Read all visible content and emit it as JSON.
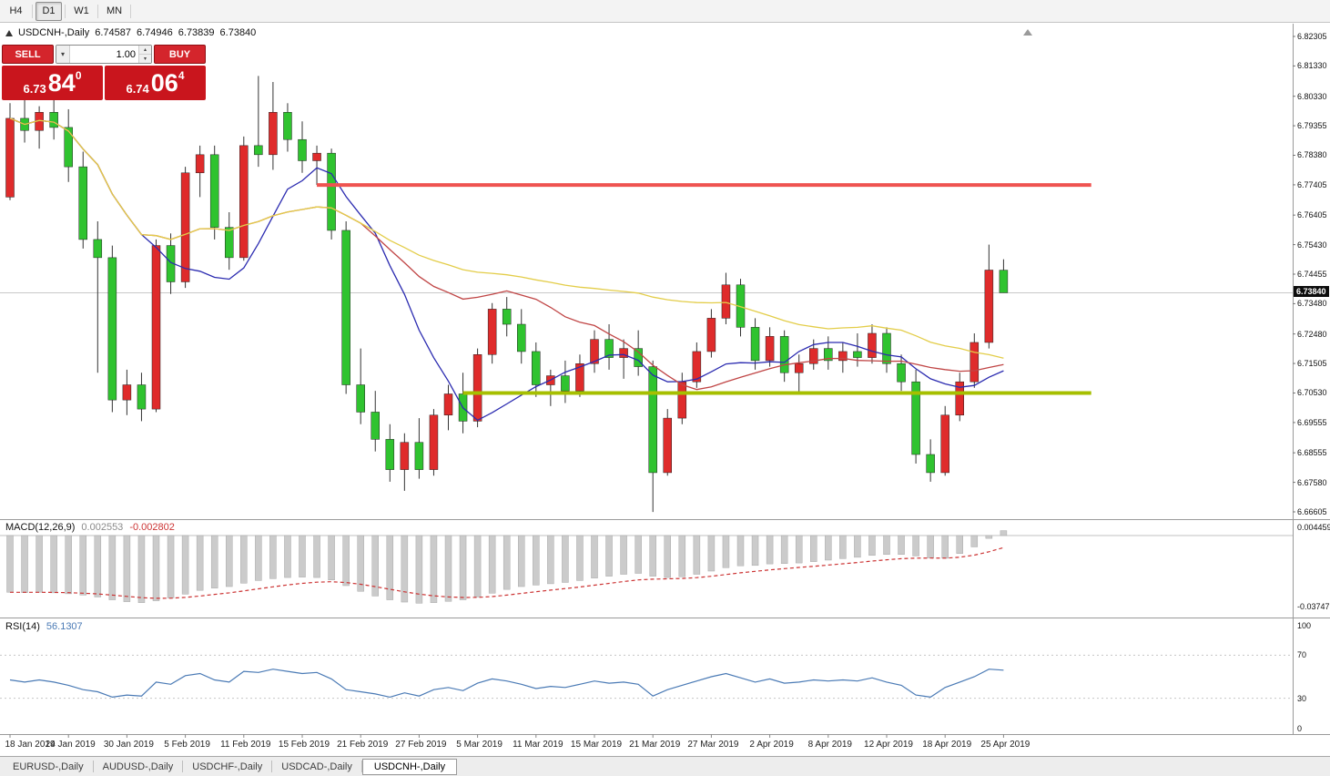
{
  "colors": {
    "accent_red": "#d4252c",
    "panel_red": "#c9151d"
  },
  "toolbar": {
    "timeframes": [
      {
        "label": "H4",
        "active": false
      },
      {
        "label": "D1",
        "active": true
      },
      {
        "label": "W1",
        "active": false
      },
      {
        "label": "MN",
        "active": false
      }
    ]
  },
  "chart": {
    "title": "USDCNH-,Daily",
    "open": "6.74587",
    "high": "6.74946",
    "low": "6.73839",
    "close": "6.73840",
    "current_price": "6.73840"
  },
  "trade_widget": {
    "sell_label": "SELL",
    "buy_label": "BUY",
    "volume": "1.00",
    "sell_price": {
      "main": "6.73",
      "pips": "84",
      "point": "0"
    },
    "buy_price": {
      "main": "6.74",
      "pips": "06",
      "point": "4"
    }
  },
  "bottom_tab_bar": {
    "tabs": [
      {
        "label": "EURUSD-,Daily",
        "active": false
      },
      {
        "label": "AUDUSD-,Daily",
        "active": false
      },
      {
        "label": "USDCHF-,Daily",
        "active": false
      },
      {
        "label": "USDCAD-,Daily",
        "active": false
      },
      {
        "label": "USDCNH-,Daily",
        "active": true
      }
    ]
  },
  "chart_data": [
    {
      "type": "candlestick",
      "title": "USDCNH-,Daily",
      "bull_color": "#df2b2b",
      "bear_color": "#2fc32f",
      "wick_color": "#333333",
      "current_price": 6.7384,
      "y_axis_labels": [
        "6.82305",
        "6.81330",
        "6.80330",
        "6.79355",
        "6.78380",
        "6.77405",
        "6.76405",
        "6.75430",
        "6.74455",
        "6.73480",
        "6.72480",
        "6.71505",
        "6.70530",
        "6.69555",
        "6.68555",
        "6.67580",
        "6.66605"
      ],
      "x_labels": [
        {
          "i": 0,
          "label": "18 Jan 2019"
        },
        {
          "i": 4,
          "label": "24 Jan 2019"
        },
        {
          "i": 8,
          "label": "30 Jan 2019"
        },
        {
          "i": 12,
          "label": "5 Feb 2019"
        },
        {
          "i": 16,
          "label": "11 Feb 2019"
        },
        {
          "i": 20,
          "label": "15 Feb 2019"
        },
        {
          "i": 24,
          "label": "21 Feb 2019"
        },
        {
          "i": 28,
          "label": "27 Feb 2019"
        },
        {
          "i": 32,
          "label": "5 Mar 2019"
        },
        {
          "i": 36,
          "label": "11 Mar 2019"
        },
        {
          "i": 40,
          "label": "15 Mar 2019"
        },
        {
          "i": 44,
          "label": "21 Mar 2019"
        },
        {
          "i": 48,
          "label": "27 Mar 2019"
        },
        {
          "i": 52,
          "label": "2 Apr 2019"
        },
        {
          "i": 56,
          "label": "8 Apr 2019"
        },
        {
          "i": 60,
          "label": "12 Apr 2019"
        },
        {
          "i": 64,
          "label": "18 Apr 2019"
        },
        {
          "i": 68,
          "label": "25 Apr 2019"
        }
      ],
      "hlines": [
        {
          "name": "resistance-line",
          "price": 6.774,
          "color": "#ef5350",
          "width": 4,
          "start_index": 21,
          "end_index": 74
        },
        {
          "name": "support-line",
          "price": 6.7053,
          "color": "#a6bf00",
          "width": 4,
          "start_index": 31,
          "end_index": 74
        }
      ],
      "moving_averages": [
        {
          "period": 10,
          "color": "#2b2bb0"
        },
        {
          "period": 25,
          "color": "#c04545"
        },
        {
          "period": 50,
          "color": "#e3cd49"
        }
      ],
      "candles": [
        [
          6.77,
          6.801,
          6.769,
          6.796
        ],
        [
          6.796,
          6.802,
          6.788,
          6.792
        ],
        [
          6.792,
          6.8,
          6.786,
          6.798
        ],
        [
          6.798,
          6.806,
          6.789,
          6.793
        ],
        [
          6.793,
          6.799,
          6.775,
          6.78
        ],
        [
          6.78,
          6.785,
          6.753,
          6.756
        ],
        [
          6.756,
          6.762,
          6.712,
          6.75
        ],
        [
          6.75,
          6.754,
          6.699,
          6.703
        ],
        [
          6.703,
          6.713,
          6.698,
          6.708
        ],
        [
          6.708,
          6.712,
          6.696,
          6.7
        ],
        [
          6.7,
          6.756,
          6.699,
          6.754
        ],
        [
          6.754,
          6.758,
          6.738,
          6.742
        ],
        [
          6.742,
          6.78,
          6.74,
          6.778
        ],
        [
          6.778,
          6.787,
          6.77,
          6.784
        ],
        [
          6.784,
          6.787,
          6.756,
          6.76
        ],
        [
          6.76,
          6.765,
          6.746,
          6.75
        ],
        [
          6.75,
          6.79,
          6.749,
          6.787
        ],
        [
          6.787,
          6.81,
          6.78,
          6.784
        ],
        [
          6.784,
          6.808,
          6.779,
          6.798
        ],
        [
          6.798,
          6.801,
          6.785,
          6.789
        ],
        [
          6.789,
          6.795,
          6.778,
          6.782
        ],
        [
          6.782,
          6.787,
          6.774,
          6.7845
        ],
        [
          6.7845,
          6.786,
          6.756,
          6.759
        ],
        [
          6.759,
          6.762,
          6.705,
          6.708
        ],
        [
          6.708,
          6.72,
          6.695,
          6.699
        ],
        [
          6.699,
          6.706,
          6.686,
          6.69
        ],
        [
          6.69,
          6.695,
          6.676,
          6.68
        ],
        [
          6.68,
          6.692,
          6.673,
          6.689
        ],
        [
          6.689,
          6.697,
          6.677,
          6.68
        ],
        [
          6.68,
          6.7,
          6.678,
          6.698
        ],
        [
          6.698,
          6.708,
          6.693,
          6.705
        ],
        [
          6.705,
          6.712,
          6.692,
          6.696
        ],
        [
          6.696,
          6.72,
          6.694,
          6.718
        ],
        [
          6.718,
          6.735,
          6.715,
          6.733
        ],
        [
          6.733,
          6.737,
          6.724,
          6.728
        ],
        [
          6.728,
          6.733,
          6.715,
          6.719
        ],
        [
          6.719,
          6.722,
          6.704,
          6.708
        ],
        [
          6.708,
          6.713,
          6.701,
          6.711
        ],
        [
          6.711,
          6.716,
          6.702,
          6.706
        ],
        [
          6.706,
          6.718,
          6.704,
          6.715
        ],
        [
          6.715,
          6.726,
          6.712,
          6.723
        ],
        [
          6.723,
          6.728,
          6.713,
          6.717
        ],
        [
          6.717,
          6.723,
          6.71,
          6.72
        ],
        [
          6.72,
          6.726,
          6.711,
          6.714
        ],
        [
          6.714,
          6.716,
          6.666,
          6.679
        ],
        [
          6.679,
          6.7,
          6.678,
          6.697
        ],
        [
          6.697,
          6.712,
          6.695,
          6.709
        ],
        [
          6.709,
          6.722,
          6.707,
          6.719
        ],
        [
          6.719,
          6.733,
          6.717,
          6.73
        ],
        [
          6.73,
          6.745,
          6.728,
          6.741
        ],
        [
          6.741,
          6.743,
          6.724,
          6.727
        ],
        [
          6.727,
          6.73,
          6.713,
          6.716
        ],
        [
          6.716,
          6.727,
          6.714,
          6.724
        ],
        [
          6.724,
          6.726,
          6.709,
          6.712
        ],
        [
          6.712,
          6.718,
          6.705,
          6.715
        ],
        [
          6.715,
          6.723,
          6.713,
          6.72
        ],
        [
          6.72,
          6.724,
          6.713,
          6.716
        ],
        [
          6.716,
          6.722,
          6.712,
          6.719
        ],
        [
          6.719,
          6.725,
          6.714,
          6.717
        ],
        [
          6.717,
          6.728,
          6.715,
          6.725
        ],
        [
          6.725,
          6.727,
          6.712,
          6.715
        ],
        [
          6.715,
          6.718,
          6.706,
          6.709
        ],
        [
          6.709,
          6.713,
          6.682,
          6.685
        ],
        [
          6.685,
          6.69,
          6.676,
          6.679
        ],
        [
          6.679,
          6.701,
          6.678,
          6.698
        ],
        [
          6.698,
          6.712,
          6.696,
          6.709
        ],
        [
          6.709,
          6.725,
          6.707,
          6.722
        ],
        [
          6.722,
          6.7543,
          6.72,
          6.7459
        ],
        [
          6.74587,
          6.74946,
          6.73839,
          6.7384
        ]
      ]
    },
    {
      "type": "bar",
      "name": "MACD(12,26,9)",
      "current_main": "0.002553",
      "current_signal": "-0.002802",
      "y_axis_labels": [
        "0.004459",
        "-0.037475"
      ],
      "bar_color": "#cbcbcb",
      "signal_color": "#cc3333",
      "signal_period": 9,
      "values": [
        -0.03,
        -0.0302,
        -0.03,
        -0.0303,
        -0.0308,
        -0.0315,
        -0.0325,
        -0.034,
        -0.035,
        -0.0355,
        -0.0345,
        -0.033,
        -0.031,
        -0.029,
        -0.0278,
        -0.027,
        -0.0252,
        -0.0238,
        -0.0228,
        -0.0222,
        -0.022,
        -0.0222,
        -0.0235,
        -0.0265,
        -0.0295,
        -0.032,
        -0.034,
        -0.0352,
        -0.0358,
        -0.0355,
        -0.0348,
        -0.034,
        -0.0325,
        -0.0305,
        -0.0285,
        -0.027,
        -0.0262,
        -0.0255,
        -0.0248,
        -0.0238,
        -0.0225,
        -0.0215,
        -0.0205,
        -0.02,
        -0.0215,
        -0.0222,
        -0.0218,
        -0.0205,
        -0.0188,
        -0.017,
        -0.016,
        -0.0158,
        -0.015,
        -0.0148,
        -0.0145,
        -0.0138,
        -0.013,
        -0.0122,
        -0.0115,
        -0.0105,
        -0.01,
        -0.01,
        -0.0108,
        -0.0118,
        -0.012,
        -0.0095,
        -0.006,
        -0.0015,
        0.0026
      ]
    },
    {
      "type": "line",
      "name": "RSI(14)",
      "current": "56.1307",
      "y_axis_labels": [
        "100",
        "70",
        "30",
        "0"
      ],
      "levels": [
        70,
        30
      ],
      "line_color": "#4a7ab5",
      "range": [
        0,
        100
      ],
      "values": [
        47,
        45,
        47,
        45,
        42,
        38,
        36,
        31,
        33,
        32,
        45,
        43,
        51,
        53,
        47,
        45,
        55,
        54,
        57,
        55,
        53,
        54,
        48,
        38,
        36,
        34,
        31,
        35,
        32,
        38,
        40,
        37,
        44,
        48,
        46,
        43,
        39,
        41,
        40,
        43,
        46,
        44,
        45,
        43,
        32,
        38,
        42,
        46,
        50,
        53,
        49,
        45,
        48,
        44,
        45,
        47,
        46,
        47,
        46,
        49,
        45,
        42,
        33,
        31,
        40,
        45,
        50,
        57,
        56.13
      ]
    }
  ]
}
